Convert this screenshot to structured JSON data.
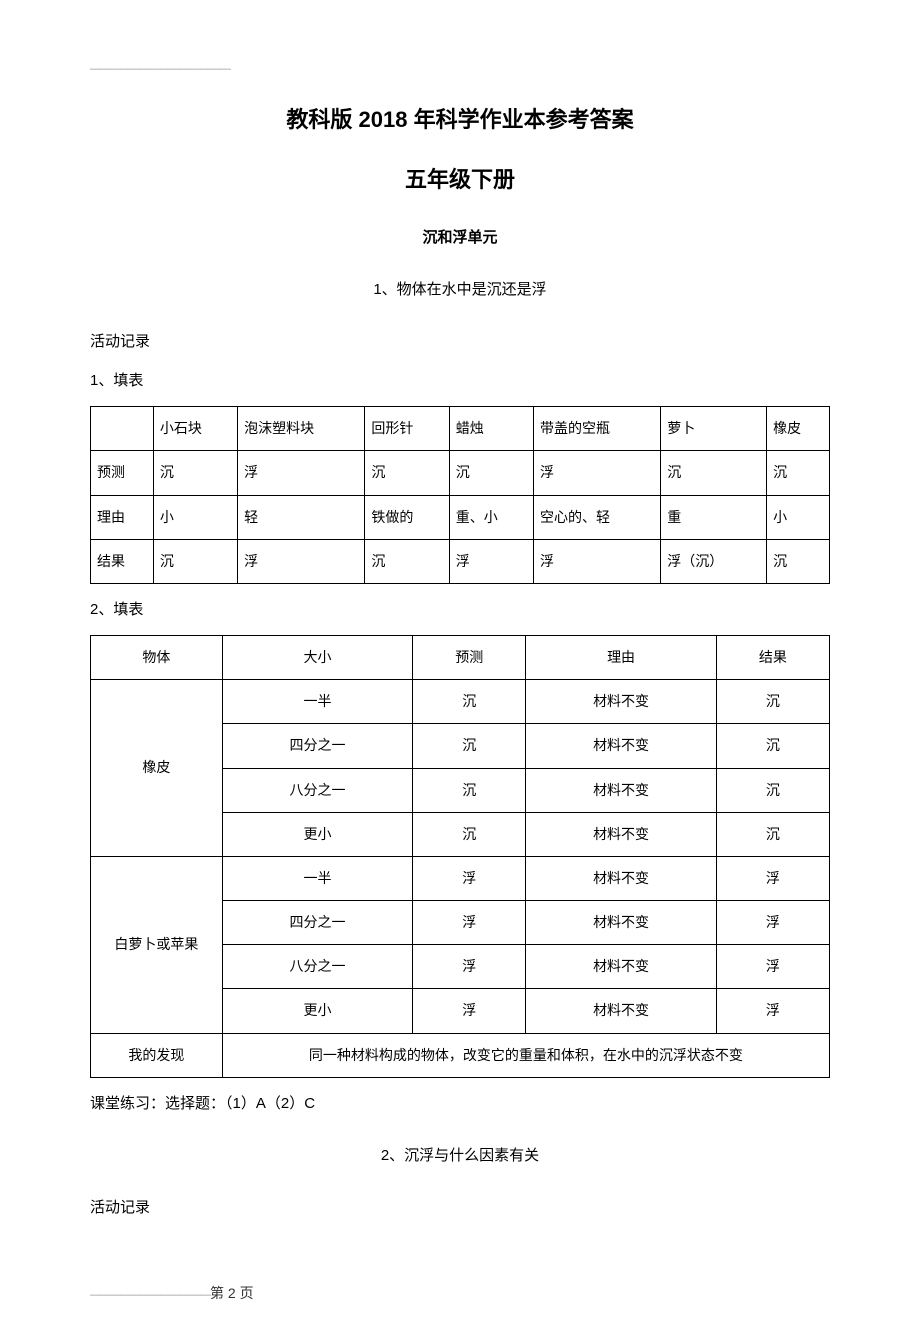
{
  "dash_top": "——————————————",
  "title_line1": "教科版 2018 年科学作业本参考答案",
  "title_line2": "五年级下册",
  "unit_title": "沉和浮单元",
  "section1_title": "1、物体在水中是沉还是浮",
  "activity_label": "活动记录",
  "fill1_label": "1、填表",
  "table1": {
    "headers": [
      "",
      "小石块",
      "泡沫塑料块",
      "回形针",
      "蜡烛",
      "带盖的空瓶",
      "萝卜",
      "橡皮"
    ],
    "rows": [
      [
        "预测",
        "沉",
        "浮",
        "沉",
        "沉",
        "浮",
        "沉",
        "沉"
      ],
      [
        "理由",
        "小",
        "轻",
        "铁做的",
        "重、小",
        "空心的、轻",
        "重",
        "小"
      ],
      [
        "结果",
        "沉",
        "浮",
        "沉",
        "浮",
        "浮",
        "浮（沉）",
        "沉"
      ]
    ]
  },
  "fill2_label": "2、填表",
  "table2": {
    "headers": [
      "物体",
      "大小",
      "预测",
      "理由",
      "结果"
    ],
    "group1_label": "橡皮",
    "group1_rows": [
      [
        "一半",
        "沉",
        "材料不变",
        "沉"
      ],
      [
        "四分之一",
        "沉",
        "材料不变",
        "沉"
      ],
      [
        "八分之一",
        "沉",
        "材料不变",
        "沉"
      ],
      [
        "更小",
        "沉",
        "材料不变",
        "沉"
      ]
    ],
    "group2_label": "白萝卜或苹果",
    "group2_rows": [
      [
        "一半",
        "浮",
        "材料不变",
        "浮"
      ],
      [
        "四分之一",
        "浮",
        "材料不变",
        "浮"
      ],
      [
        "八分之一",
        "浮",
        "材料不变",
        "浮"
      ],
      [
        "更小",
        "浮",
        "材料不变",
        "浮"
      ]
    ],
    "finding_label": "我的发现",
    "finding_text": "同一种材料构成的物体，改变它的重量和体积，在水中的沉浮状态不变"
  },
  "practice_text": "课堂练习：选择题：（1）A（2）C",
  "section2_title": "2、沉浮与什么因素有关",
  "activity_label2": "活动记录",
  "footer_dashes": "————————————",
  "footer_page": "第 2 页"
}
